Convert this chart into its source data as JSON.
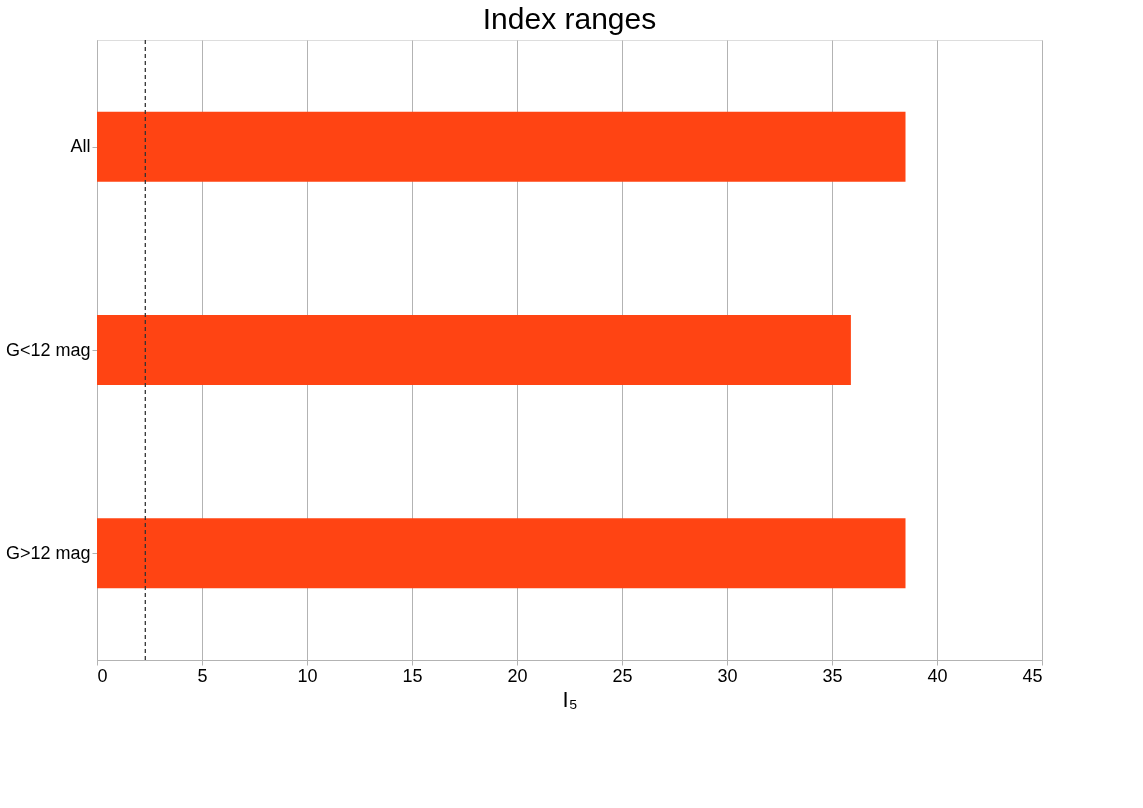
{
  "chart_data": {
    "type": "bar",
    "orientation": "horizontal",
    "title": "Index ranges",
    "xlabel": "I₅",
    "categories": [
      "All",
      "G<12 mag",
      "G>12 mag"
    ],
    "values": [
      38.5,
      35.9,
      38.5
    ],
    "color": "#ff4413",
    "xlim": [
      0,
      45
    ],
    "xticks": [
      0,
      5,
      10,
      15,
      20,
      25,
      30,
      35,
      40,
      45
    ],
    "grid": "x",
    "ref_lines": [
      {
        "axis": "x",
        "value": 2.3,
        "color": "#333333",
        "line_style": "dashed"
      }
    ]
  }
}
